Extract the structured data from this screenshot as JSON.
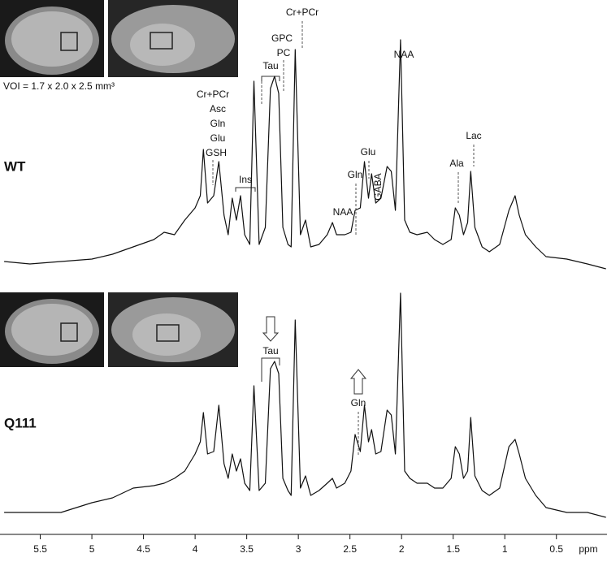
{
  "chart_data": [
    {
      "type": "line",
      "note": "VOI = 1.7 x 2.0 x 2.5 mm³",
      "x": [
        5.85,
        5.6,
        5.3,
        5.0,
        4.8,
        4.6,
        4.4,
        4.3,
        4.2,
        4.1,
        4.0,
        3.95,
        3.92,
        3.88,
        3.82,
        3.77,
        3.72,
        3.68,
        3.64,
        3.6,
        3.56,
        3.52,
        3.47,
        3.43,
        3.38,
        3.32,
        3.27,
        3.23,
        3.19,
        3.15,
        3.1,
        3.07,
        3.03,
        2.98,
        2.93,
        2.88,
        2.8,
        2.72,
        2.67,
        2.63,
        2.55,
        2.49,
        2.45,
        2.4,
        2.36,
        2.32,
        2.29,
        2.25,
        2.2,
        2.14,
        2.1,
        2.06,
        2.01,
        1.97,
        1.92,
        1.85,
        1.75,
        1.68,
        1.6,
        1.52,
        1.48,
        1.44,
        1.4,
        1.36,
        1.33,
        1.29,
        1.22,
        1.15,
        1.05,
        0.96,
        0.9,
        0.86,
        0.8,
        0.7,
        0.6,
        0.4,
        0.2,
        0.02
      ],
      "series": [
        {
          "name": "WT",
          "color": "#111111",
          "values": [
            6,
            5,
            6,
            7,
            9,
            12,
            15,
            18,
            17,
            23,
            28,
            33,
            52,
            30,
            33,
            47,
            25,
            17,
            32,
            23,
            33,
            17,
            13,
            80,
            13,
            20,
            77,
            82,
            75,
            20,
            13,
            12,
            93,
            17,
            23,
            12,
            13,
            17,
            22,
            17,
            17,
            18,
            27,
            28,
            47,
            32,
            42,
            30,
            32,
            45,
            43,
            27,
            97,
            23,
            18,
            17,
            18,
            15,
            13,
            15,
            28,
            25,
            17,
            22,
            43,
            20,
            12,
            10,
            13,
            27,
            33,
            25,
            17,
            12,
            8,
            7,
            5,
            3
          ]
        }
      ],
      "xlim": [
        5.89,
        0.01
      ],
      "ylim": [
        0,
        100
      ],
      "annotations": [
        "Cr+PCr",
        "Asc",
        "Gln",
        "Glu",
        "GSH",
        "Ins",
        "Tau",
        "GPC",
        "PC",
        "Cr+PCr",
        "NAA",
        "Gln",
        "Glu",
        "GABA",
        "NAA",
        "Ala",
        "Lac"
      ]
    },
    {
      "type": "line",
      "x": [
        5.85,
        5.6,
        5.3,
        5.0,
        4.8,
        4.6,
        4.4,
        4.3,
        4.2,
        4.1,
        4.0,
        3.95,
        3.92,
        3.88,
        3.82,
        3.77,
        3.72,
        3.68,
        3.64,
        3.6,
        3.56,
        3.52,
        3.47,
        3.43,
        3.38,
        3.32,
        3.27,
        3.23,
        3.19,
        3.15,
        3.1,
        3.07,
        3.03,
        2.98,
        2.93,
        2.88,
        2.8,
        2.72,
        2.67,
        2.63,
        2.55,
        2.49,
        2.45,
        2.4,
        2.36,
        2.32,
        2.29,
        2.25,
        2.2,
        2.14,
        2.1,
        2.06,
        2.01,
        1.97,
        1.92,
        1.85,
        1.75,
        1.68,
        1.6,
        1.52,
        1.48,
        1.44,
        1.4,
        1.36,
        1.33,
        1.29,
        1.22,
        1.15,
        1.05,
        0.96,
        0.9,
        0.86,
        0.8,
        0.7,
        0.6,
        0.4,
        0.2,
        0.02
      ],
      "series": [
        {
          "name": "Q111",
          "color": "#111111",
          "values": [
            8,
            8,
            8,
            12,
            14,
            18,
            19,
            20,
            22,
            25,
            32,
            37,
            49,
            32,
            33,
            52,
            28,
            22,
            32,
            25,
            30,
            20,
            17,
            60,
            17,
            20,
            67,
            70,
            65,
            22,
            17,
            15,
            87,
            18,
            23,
            15,
            17,
            20,
            22,
            18,
            20,
            25,
            40,
            33,
            52,
            37,
            42,
            32,
            33,
            50,
            48,
            32,
            98,
            25,
            22,
            20,
            20,
            18,
            18,
            22,
            35,
            32,
            22,
            25,
            47,
            23,
            17,
            15,
            18,
            35,
            38,
            32,
            22,
            15,
            10,
            8,
            8,
            6
          ]
        }
      ],
      "xlim": [
        5.89,
        0.01
      ],
      "ylim": [
        0,
        100
      ],
      "xticks": [
        5.5,
        5.0,
        4.5,
        4.0,
        3.5,
        3.0,
        2.5,
        2.0,
        1.5,
        1.0,
        0.5
      ],
      "xlabel": "ppm",
      "annotations": [
        "Tau",
        "Gln"
      ]
    }
  ]
}
